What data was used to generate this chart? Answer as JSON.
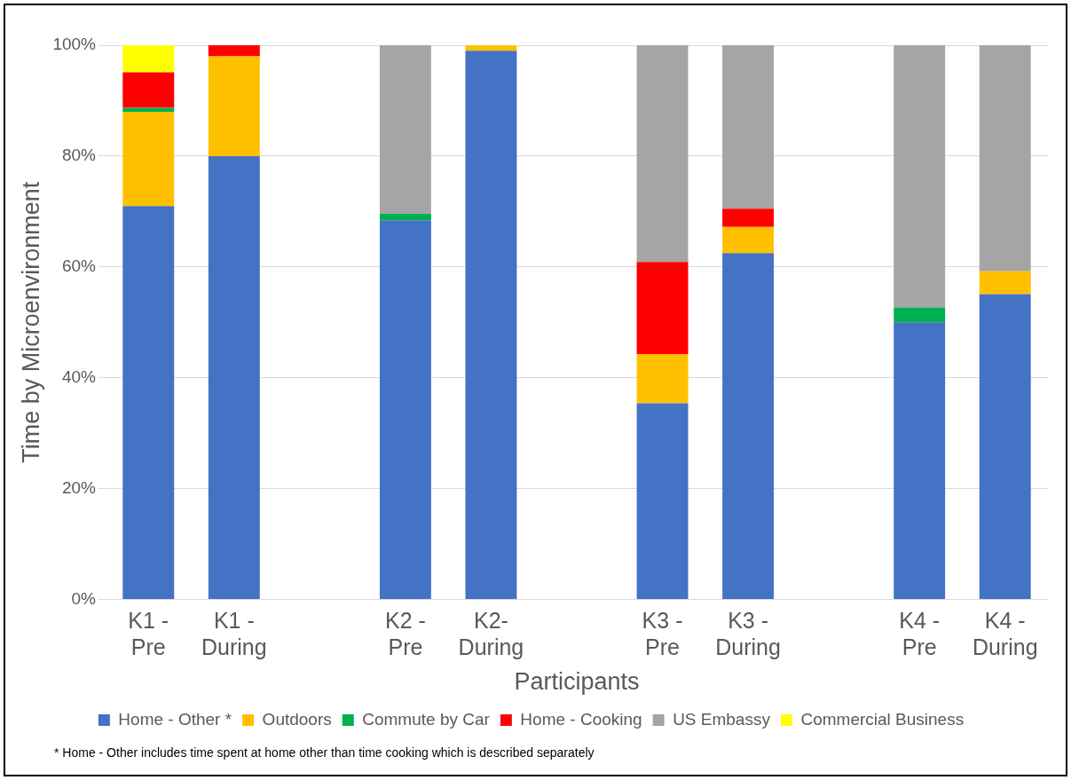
{
  "chart_data": {
    "type": "bar",
    "stacked": true,
    "xlabel": "Participants",
    "ylabel": "Time by Microenvironment",
    "categories": [
      "K1 - Pre",
      "K1 - During",
      null,
      "K2 - Pre",
      "K2- During",
      null,
      "K3 - Pre",
      "K3 - During",
      null,
      "K4 - Pre",
      "K4 - During"
    ],
    "series": [
      {
        "name": "Home - Other *",
        "color": "#4472c4",
        "values": [
          71,
          80,
          null,
          68.4,
          99,
          null,
          35.4,
          62.5,
          null,
          50,
          55.1
        ]
      },
      {
        "name": "Outdoors",
        "color": "#ffc000",
        "values": [
          17,
          18,
          null,
          null,
          1,
          null,
          8.9,
          4.7,
          null,
          null,
          4.1
        ]
      },
      {
        "name": "Commute by Car",
        "color": "#00b050",
        "values": [
          0.7,
          null,
          null,
          1.2,
          null,
          null,
          null,
          null,
          null,
          2.7,
          null
        ]
      },
      {
        "name": "Home - Cooking",
        "color": "#ff0000",
        "values": [
          6.4,
          2,
          null,
          null,
          null,
          null,
          16.6,
          3.3,
          null,
          null,
          null
        ]
      },
      {
        "name": "US Embassy",
        "color": "#a5a5a5",
        "values": [
          null,
          null,
          null,
          30.4,
          null,
          null,
          39.1,
          29.5,
          null,
          47.3,
          40.8
        ]
      },
      {
        "name": "Commercial Business",
        "color": "#ffff00",
        "values": [
          4.9,
          null,
          null,
          null,
          null,
          null,
          null,
          null,
          null,
          null,
          null
        ]
      }
    ],
    "ylim": [
      0,
      100
    ],
    "yticks": [
      {
        "value": 0,
        "label": "0%"
      },
      {
        "value": 20,
        "label": "20%"
      },
      {
        "value": 40,
        "label": "40%"
      },
      {
        "value": 60,
        "label": "60%"
      },
      {
        "value": 80,
        "label": "80%"
      },
      {
        "value": 100,
        "label": "100%"
      }
    ],
    "grid": "y",
    "legend": "bottom",
    "annotations": [
      "* Home  - Other includes time spent at home other than time cooking which is described separately"
    ]
  }
}
